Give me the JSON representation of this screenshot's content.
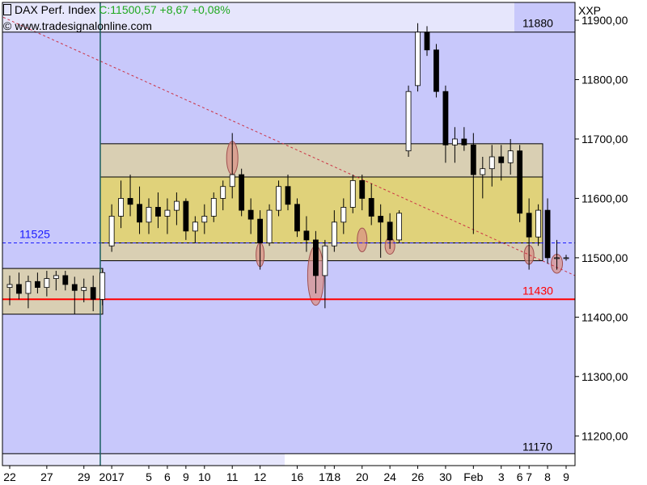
{
  "header": {
    "symbol": "DAX Perf. Index",
    "quote": "C:11500,57 +8,67 +0,08%",
    "copyright_mark": "©",
    "source": "www.tradesignalonline.com"
  },
  "exchange": "XXP",
  "chart_data": {
    "type": "candlestick",
    "ylim": [
      11150,
      11930
    ],
    "y_ticks": [
      {
        "v": 11200,
        "label": "11200,00"
      },
      {
        "v": 11300,
        "label": "11300,00"
      },
      {
        "v": 11400,
        "label": "11400,00"
      },
      {
        "v": 11500,
        "label": "11500,00"
      },
      {
        "v": 11600,
        "label": "11600,00"
      },
      {
        "v": 11700,
        "label": "11700,00"
      },
      {
        "v": 11800,
        "label": "11800,00"
      },
      {
        "v": 11900,
        "label": "11900,00"
      }
    ],
    "x_ticks": [
      {
        "i": 0,
        "label": "22"
      },
      {
        "i": 4,
        "label": "27"
      },
      {
        "i": 8,
        "label": "29"
      },
      {
        "i": 11,
        "label": "2017"
      },
      {
        "i": 15,
        "label": "5"
      },
      {
        "i": 17,
        "label": "6"
      },
      {
        "i": 19,
        "label": "9"
      },
      {
        "i": 21,
        "label": "10"
      },
      {
        "i": 24,
        "label": "11"
      },
      {
        "i": 27,
        "label": "12"
      },
      {
        "i": 31,
        "label": "16"
      },
      {
        "i": 34,
        "label": "17"
      },
      {
        "i": 35,
        "label": "18"
      },
      {
        "i": 38,
        "label": "20"
      },
      {
        "i": 41,
        "label": "24"
      },
      {
        "i": 44,
        "label": "26"
      },
      {
        "i": 47,
        "label": "30"
      },
      {
        "i": 50,
        "label": "Feb"
      },
      {
        "i": 53,
        "label": "3"
      },
      {
        "i": 55,
        "label": "6"
      },
      {
        "i": 56,
        "label": "7"
      },
      {
        "i": 58,
        "label": "8"
      },
      {
        "i": 60,
        "label": "9"
      }
    ],
    "sessions": [
      {
        "label": "22",
        "o": 11450,
        "h": 11470,
        "l": 11420,
        "c": 11455
      },
      {
        "label": "",
        "o": 11455,
        "h": 11475,
        "l": 11430,
        "c": 11440
      },
      {
        "label": "",
        "o": 11440,
        "h": 11470,
        "l": 11415,
        "c": 11460
      },
      {
        "label": "",
        "o": 11460,
        "h": 11475,
        "l": 11440,
        "c": 11450
      },
      {
        "label": "27",
        "o": 11450,
        "h": 11478,
        "l": 11435,
        "c": 11465
      },
      {
        "label": "",
        "o": 11465,
        "h": 11478,
        "l": 11445,
        "c": 11470
      },
      {
        "label": "",
        "o": 11470,
        "h": 11478,
        "l": 11445,
        "c": 11455
      },
      {
        "label": "",
        "o": 11455,
        "h": 11468,
        "l": 11405,
        "c": 11445
      },
      {
        "label": "29",
        "o": 11445,
        "h": 11465,
        "l": 11425,
        "c": 11450
      },
      {
        "label": "",
        "o": 11450,
        "h": 11470,
        "l": 11410,
        "c": 11430
      },
      {
        "label": "",
        "o": 11430,
        "h": 11480,
        "l": 11420,
        "c": 11475
      },
      {
        "label": "2017",
        "o": 11520,
        "h": 11590,
        "l": 11510,
        "c": 11570
      },
      {
        "label": "",
        "o": 11570,
        "h": 11630,
        "l": 11550,
        "c": 11600
      },
      {
        "label": "",
        "o": 11600,
        "h": 11640,
        "l": 11570,
        "c": 11590
      },
      {
        "label": "",
        "o": 11590,
        "h": 11620,
        "l": 11540,
        "c": 11560
      },
      {
        "label": "5",
        "o": 11560,
        "h": 11600,
        "l": 11540,
        "c": 11585
      },
      {
        "label": "",
        "o": 11585,
        "h": 11610,
        "l": 11550,
        "c": 11570
      },
      {
        "label": "6",
        "o": 11570,
        "h": 11600,
        "l": 11540,
        "c": 11580
      },
      {
        "label": "",
        "o": 11580,
        "h": 11610,
        "l": 11555,
        "c": 11595
      },
      {
        "label": "9",
        "o": 11595,
        "h": 11600,
        "l": 11530,
        "c": 11545
      },
      {
        "label": "",
        "o": 11545,
        "h": 11570,
        "l": 11525,
        "c": 11560
      },
      {
        "label": "10",
        "o": 11560,
        "h": 11590,
        "l": 11540,
        "c": 11570
      },
      {
        "label": "",
        "o": 11570,
        "h": 11610,
        "l": 11560,
        "c": 11600
      },
      {
        "label": "",
        "o": 11600,
        "h": 11630,
        "l": 11580,
        "c": 11620
      },
      {
        "label": "11",
        "o": 11620,
        "h": 11710,
        "l": 11600,
        "c": 11640
      },
      {
        "label": "",
        "o": 11640,
        "h": 11650,
        "l": 11570,
        "c": 11580
      },
      {
        "label": "",
        "o": 11580,
        "h": 11600,
        "l": 11540,
        "c": 11565
      },
      {
        "label": "12",
        "o": 11565,
        "h": 11580,
        "l": 11480,
        "c": 11525
      },
      {
        "label": "",
        "o": 11525,
        "h": 11590,
        "l": 11520,
        "c": 11580
      },
      {
        "label": "",
        "o": 11580,
        "h": 11630,
        "l": 11570,
        "c": 11620
      },
      {
        "label": "",
        "o": 11620,
        "h": 11640,
        "l": 11580,
        "c": 11590
      },
      {
        "label": "16",
        "o": 11590,
        "h": 11600,
        "l": 11535,
        "c": 11545
      },
      {
        "label": "",
        "o": 11545,
        "h": 11570,
        "l": 11510,
        "c": 11530
      },
      {
        "label": "",
        "o": 11530,
        "h": 11545,
        "l": 11440,
        "c": 11470
      },
      {
        "label": "17",
        "o": 11470,
        "h": 11530,
        "l": 11415,
        "c": 11520
      },
      {
        "label": "18",
        "o": 11520,
        "h": 11580,
        "l": 11510,
        "c": 11560
      },
      {
        "label": "",
        "o": 11560,
        "h": 11600,
        "l": 11540,
        "c": 11585
      },
      {
        "label": "",
        "o": 11585,
        "h": 11640,
        "l": 11575,
        "c": 11630
      },
      {
        "label": "20",
        "o": 11630,
        "h": 11640,
        "l": 11580,
        "c": 11600
      },
      {
        "label": "",
        "o": 11600,
        "h": 11625,
        "l": 11555,
        "c": 11570
      },
      {
        "label": "",
        "o": 11570,
        "h": 11590,
        "l": 11500,
        "c": 11560
      },
      {
        "label": "24",
        "o": 11560,
        "h": 11575,
        "l": 11515,
        "c": 11530
      },
      {
        "label": "",
        "o": 11530,
        "h": 11580,
        "l": 11525,
        "c": 11575
      },
      {
        "label": "",
        "o": 11680,
        "h": 11790,
        "l": 11670,
        "c": 11780
      },
      {
        "label": "26",
        "o": 11790,
        "h": 11895,
        "l": 11780,
        "c": 11880
      },
      {
        "label": "",
        "o": 11880,
        "h": 11890,
        "l": 11840,
        "c": 11850
      },
      {
        "label": "",
        "o": 11850,
        "h": 11860,
        "l": 11770,
        "c": 11780
      },
      {
        "label": "30",
        "o": 11780,
        "h": 11790,
        "l": 11660,
        "c": 11690
      },
      {
        "label": "",
        "o": 11690,
        "h": 11720,
        "l": 11660,
        "c": 11700
      },
      {
        "label": "",
        "o": 11700,
        "h": 11720,
        "l": 11680,
        "c": 11690
      },
      {
        "label": "Feb",
        "o": 11690,
        "h": 11710,
        "l": 11540,
        "c": 11640
      },
      {
        "label": "",
        "o": 11640,
        "h": 11670,
        "l": 11600,
        "c": 11650
      },
      {
        "label": "",
        "o": 11650,
        "h": 11690,
        "l": 11620,
        "c": 11670
      },
      {
        "label": "3",
        "o": 11670,
        "h": 11690,
        "l": 11630,
        "c": 11660
      },
      {
        "label": "",
        "o": 11660,
        "h": 11700,
        "l": 11640,
        "c": 11680
      },
      {
        "label": "6",
        "o": 11680,
        "h": 11690,
        "l": 11560,
        "c": 11575
      },
      {
        "label": "7",
        "o": 11575,
        "h": 11600,
        "l": 11480,
        "c": 11535
      },
      {
        "label": "",
        "o": 11535,
        "h": 11590,
        "l": 11520,
        "c": 11580
      },
      {
        "label": "8",
        "o": 11580,
        "h": 11600,
        "l": 11490,
        "c": 11500
      },
      {
        "label": "",
        "o": 11500,
        "h": 11530,
        "l": 11480,
        "c": 11500
      },
      {
        "label": "9",
        "o": 11500,
        "h": 11505,
        "l": 11495,
        "c": 11500
      }
    ],
    "levels": [
      {
        "name": "resistance",
        "value": 11880,
        "label": "11880",
        "color": "#000000"
      },
      {
        "name": "support",
        "value": 11430,
        "label": "11430",
        "color": "#ff0000"
      },
      {
        "name": "support-2",
        "value": 11170,
        "label": "11170",
        "color": "#000000"
      },
      {
        "name": "dashed",
        "value": 11525,
        "label": "11525",
        "color": "#1a1aff"
      }
    ],
    "trendline": {
      "from": [
        0,
        11905
      ],
      "to": [
        61,
        11470
      ],
      "color": "#cc3344"
    },
    "colors": {
      "background": "#c8c8fb",
      "plot_bg_upper": "#e6e6fc",
      "plot_bg_lower": "#e6e6fc",
      "range_outer": "#d9cfb3",
      "range_inner": "#e0d27a",
      "highlight": "#d98f84",
      "candle_up": "#ffffff",
      "candle_down": "#000000"
    }
  }
}
